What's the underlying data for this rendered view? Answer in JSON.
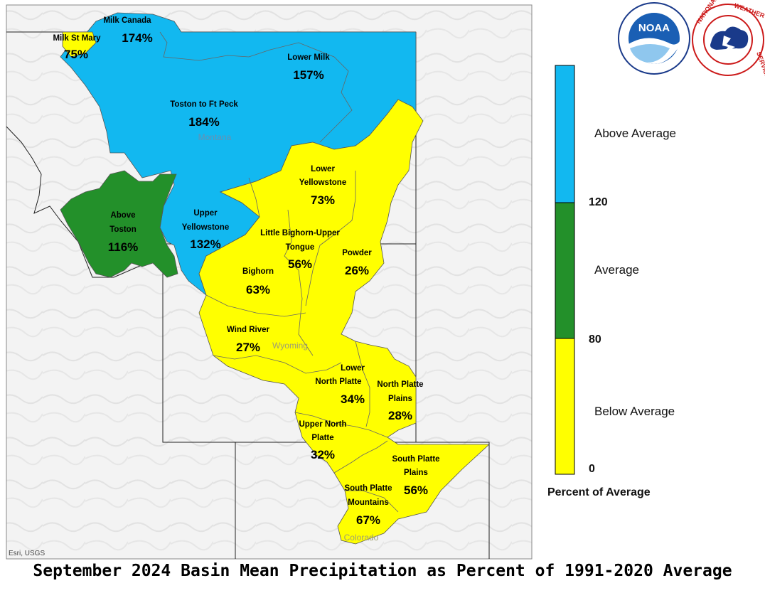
{
  "title": "September 2024 Basin Mean Precipitation as Percent of 1991-2020 Average",
  "credit": "Esri, USGS",
  "colors": {
    "above": "#12b8f0",
    "average": "#23902a",
    "below": "#ffff00"
  },
  "states": [
    "Montana",
    "Wyoming",
    "Colorado"
  ],
  "legend": {
    "title": "Percent of Average",
    "categories": [
      "Above Average",
      "Average",
      "Below Average"
    ],
    "ticks": [
      "120",
      "80",
      "0"
    ]
  },
  "logos": {
    "noaa": "NOAA",
    "noaa_ring": "NATIONAL OCEANIC AND ATMOSPHERIC ADMINISTRATION · U.S. DEPARTMENT OF COMMERCE",
    "nws_ring": "NATIONAL WEATHER SERVICE"
  },
  "basins": [
    {
      "name": "Milk Canada",
      "value": "174%",
      "category": "above"
    },
    {
      "name": "Milk St Mary",
      "value": "75%",
      "category": "below"
    },
    {
      "name": "Lower Milk",
      "value": "157%",
      "category": "above"
    },
    {
      "name": "Toston to Ft Peck",
      "value": "184%",
      "category": "above"
    },
    {
      "name": "Lower Yellowstone",
      "value": "73%",
      "category": "below"
    },
    {
      "name": "Above Toston",
      "value": "116%",
      "category": "average"
    },
    {
      "name": "Upper Yellowstone",
      "value": "132%",
      "category": "above"
    },
    {
      "name": "Little Bighorn-Upper Tongue",
      "value": "56%",
      "category": "below"
    },
    {
      "name": "Powder",
      "value": "26%",
      "category": "below"
    },
    {
      "name": "Bighorn",
      "value": "63%",
      "category": "below"
    },
    {
      "name": "Wind River",
      "value": "27%",
      "category": "below"
    },
    {
      "name": "Lower North Platte",
      "value": "34%",
      "category": "below"
    },
    {
      "name": "North Platte Plains",
      "value": "28%",
      "category": "below"
    },
    {
      "name": "Upper North Platte",
      "value": "32%",
      "category": "below"
    },
    {
      "name": "South Platte Plains",
      "value": "56%",
      "category": "below"
    },
    {
      "name": "South Platte Mountains",
      "value": "67%",
      "category": "below"
    }
  ]
}
